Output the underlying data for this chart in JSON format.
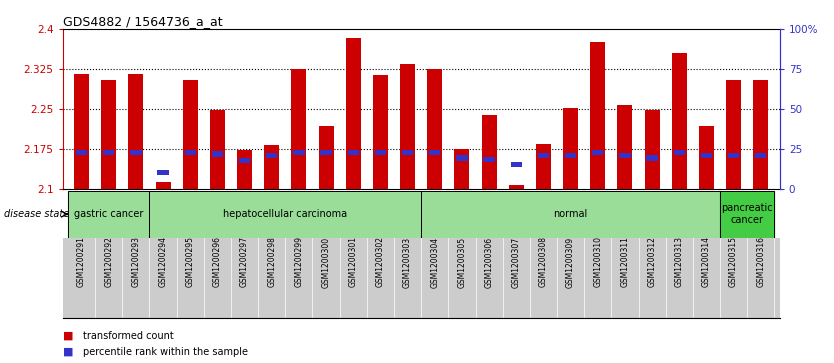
{
  "title": "GDS4882 / 1564736_a_at",
  "samples": [
    "GSM1200291",
    "GSM1200292",
    "GSM1200293",
    "GSM1200294",
    "GSM1200295",
    "GSM1200296",
    "GSM1200297",
    "GSM1200298",
    "GSM1200299",
    "GSM1200300",
    "GSM1200301",
    "GSM1200302",
    "GSM1200303",
    "GSM1200304",
    "GSM1200305",
    "GSM1200306",
    "GSM1200307",
    "GSM1200308",
    "GSM1200309",
    "GSM1200310",
    "GSM1200311",
    "GSM1200312",
    "GSM1200313",
    "GSM1200314",
    "GSM1200315",
    "GSM1200316"
  ],
  "bar_values": [
    2.315,
    2.305,
    2.315,
    2.113,
    2.305,
    2.248,
    2.173,
    2.183,
    2.325,
    2.218,
    2.383,
    2.313,
    2.335,
    2.325,
    2.175,
    2.238,
    2.108,
    2.185,
    2.252,
    2.375,
    2.258,
    2.248,
    2.355,
    2.218,
    2.305,
    2.305
  ],
  "percentile_values": [
    2.168,
    2.168,
    2.168,
    2.13,
    2.168,
    2.165,
    2.153,
    2.163,
    2.168,
    2.168,
    2.168,
    2.168,
    2.168,
    2.168,
    2.158,
    2.155,
    2.145,
    2.163,
    2.163,
    2.168,
    2.163,
    2.158,
    2.168,
    2.163,
    2.163,
    2.163
  ],
  "ylim": [
    2.1,
    2.4
  ],
  "y_ticks": [
    2.1,
    2.175,
    2.25,
    2.325,
    2.4
  ],
  "y_tick_labels": [
    "2.1",
    "2.175",
    "2.25",
    "2.325",
    "2.4"
  ],
  "right_yticks": [
    0,
    25,
    50,
    75,
    100
  ],
  "right_yticklabels": [
    "0",
    "25",
    "50",
    "75",
    "100%"
  ],
  "bar_color": "#cc0000",
  "percentile_color": "#3333cc",
  "bg_color": "#ffffff",
  "tick_bg_color": "#cccccc",
  "groups": [
    {
      "label": "gastric cancer",
      "start": 0,
      "end": 3,
      "color": "#99dd99"
    },
    {
      "label": "hepatocellular carcinoma",
      "start": 3,
      "end": 13,
      "color": "#99dd99"
    },
    {
      "label": "normal",
      "start": 13,
      "end": 24,
      "color": "#99dd99"
    },
    {
      "label": "pancreatic\ncancer",
      "start": 24,
      "end": 26,
      "color": "#44cc44"
    }
  ],
  "legend_items": [
    {
      "label": "transformed count",
      "color": "#cc0000"
    },
    {
      "label": "percentile rank within the sample",
      "color": "#3333cc"
    }
  ],
  "disease_state_label": "disease state",
  "axis_left_color": "#cc0000",
  "axis_right_color": "#3333cc"
}
